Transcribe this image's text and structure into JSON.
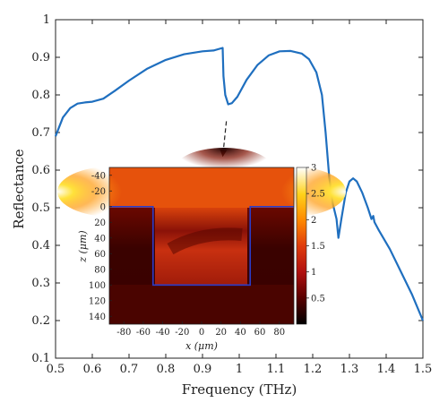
{
  "chart_data": {
    "type": "line",
    "title": "",
    "xlabel": "Frequency (THz)",
    "ylabel": "Reflectance",
    "xlim": [
      0.5,
      1.5
    ],
    "ylim": [
      0.1,
      1.0
    ],
    "xticks": [
      "0.5",
      "0.6",
      "0.7",
      "0.8",
      "0.9",
      "1",
      "1.1",
      "1.2",
      "1.3",
      "1.4",
      "1.5"
    ],
    "yticks": [
      "0.1",
      "0.2",
      "0.3",
      "0.4",
      "0.5",
      "0.6",
      "0.7",
      "0.8",
      "0.9",
      "1"
    ],
    "grid": false,
    "line_color": "#1f6fbf",
    "series": [
      {
        "points": [
          [
            0.5,
            0.69
          ],
          [
            0.52,
            0.74
          ],
          [
            0.54,
            0.765
          ],
          [
            0.56,
            0.777
          ],
          [
            0.58,
            0.78
          ],
          [
            0.6,
            0.782
          ],
          [
            0.63,
            0.79
          ],
          [
            0.66,
            0.81
          ],
          [
            0.7,
            0.838
          ],
          [
            0.75,
            0.87
          ],
          [
            0.8,
            0.893
          ],
          [
            0.85,
            0.908
          ],
          [
            0.9,
            0.916
          ],
          [
            0.93,
            0.918
          ],
          [
            0.955,
            0.925
          ],
          [
            0.957,
            0.85
          ],
          [
            0.962,
            0.8
          ],
          [
            0.97,
            0.775
          ],
          [
            0.98,
            0.778
          ],
          [
            0.995,
            0.795
          ],
          [
            1.02,
            0.84
          ],
          [
            1.05,
            0.88
          ],
          [
            1.08,
            0.905
          ],
          [
            1.11,
            0.916
          ],
          [
            1.14,
            0.917
          ],
          [
            1.17,
            0.91
          ],
          [
            1.19,
            0.895
          ],
          [
            1.21,
            0.86
          ],
          [
            1.225,
            0.8
          ],
          [
            1.235,
            0.7
          ],
          [
            1.245,
            0.58
          ],
          [
            1.255,
            0.51
          ],
          [
            1.265,
            0.47
          ],
          [
            1.27,
            0.42
          ],
          [
            1.278,
            0.47
          ],
          [
            1.29,
            0.54
          ],
          [
            1.3,
            0.57
          ],
          [
            1.31,
            0.578
          ],
          [
            1.32,
            0.57
          ],
          [
            1.335,
            0.54
          ],
          [
            1.35,
            0.5
          ],
          [
            1.36,
            0.47
          ],
          [
            1.365,
            0.478
          ],
          [
            1.368,
            0.462
          ],
          [
            1.38,
            0.44
          ],
          [
            1.41,
            0.39
          ],
          [
            1.44,
            0.33
          ],
          [
            1.47,
            0.27
          ],
          [
            1.5,
            0.2
          ]
        ]
      }
    ],
    "annotation": {
      "type": "dashed-arrow",
      "from": [
        0.965,
        0.73
      ],
      "to": [
        0.955,
        0.635
      ]
    },
    "inset": {
      "type": "heatmap",
      "xlabel": "x (μm)",
      "ylabel": "z (μm)",
      "xlim": [
        -95,
        95
      ],
      "ylim": [
        -50,
        150
      ],
      "xticks": [
        "-80",
        "-60",
        "-40",
        "-20",
        "0",
        "20",
        "40",
        "60",
        "80"
      ],
      "yticks": [
        "-40",
        "-20",
        "0",
        "20",
        "40",
        "60",
        "80",
        "100",
        "120",
        "140"
      ],
      "colorbar_ticks": [
        "0.5",
        "1",
        "1.5",
        "2",
        "2.5",
        "3"
      ],
      "colorbar_range": [
        0,
        3
      ],
      "colormap": [
        "#000000",
        "#5a0000",
        "#b01010",
        "#e03c0c",
        "#ff8c00",
        "#ffd21a",
        "#ffffff"
      ],
      "structure_outline": [
        [
          -95,
          0
        ],
        [
          -50,
          0
        ],
        [
          -50,
          100
        ],
        [
          50,
          100
        ],
        [
          50,
          0
        ],
        [
          95,
          0
        ]
      ],
      "structure_color": "#2a3cc8"
    }
  }
}
